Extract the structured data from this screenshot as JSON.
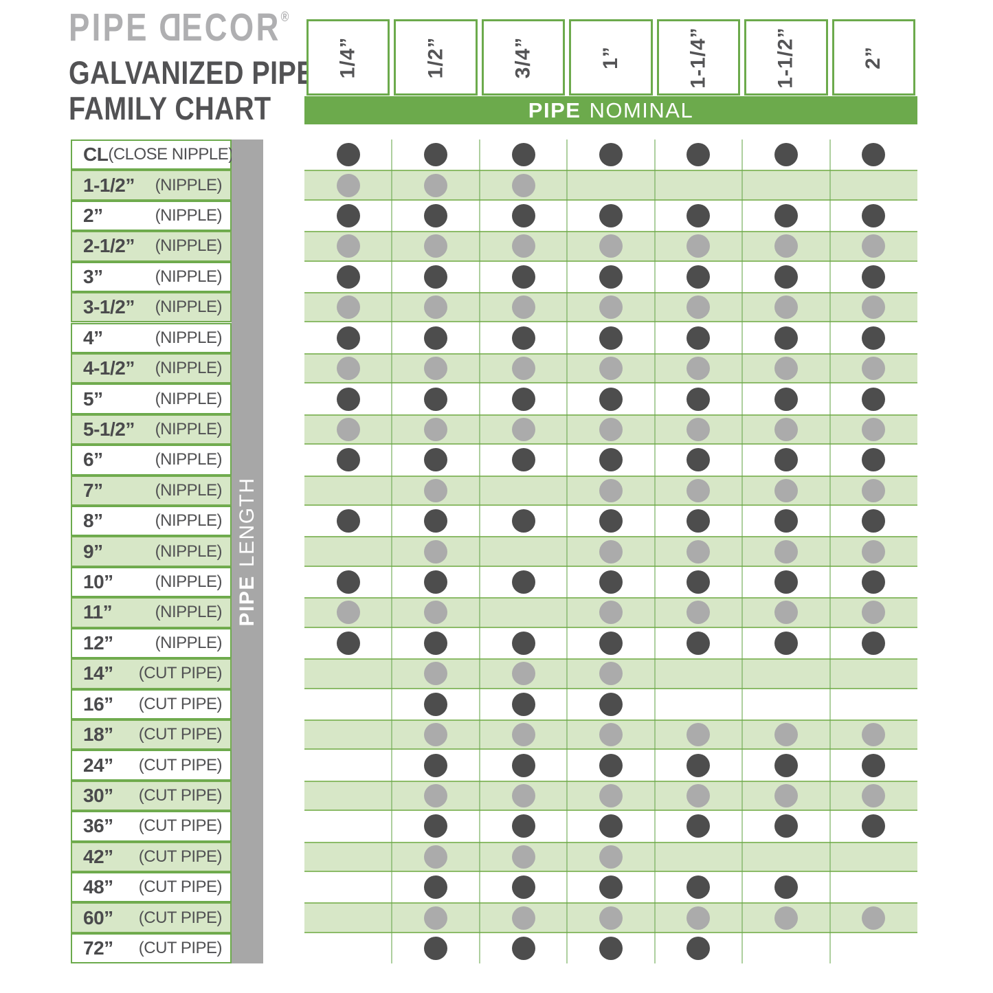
{
  "title": {
    "logo_part1": "PIPE",
    "logo_d": "D",
    "logo_part2": "ECOR",
    "logo_reg": "®",
    "line1": "GALVANIZED PIPE",
    "line2": "FAMILY CHART"
  },
  "chart_data": {
    "type": "table",
    "title": "Galvanized Pipe Family Chart",
    "col_axis": {
      "bold": "PIPE",
      "regular": "NOMINAL"
    },
    "row_axis": {
      "bold": "PIPE",
      "regular": "LENGTH"
    },
    "columns": [
      "1/4”",
      "1/2”",
      "3/4”",
      "1”",
      "1-1/4”",
      "1-1/2”",
      "2”"
    ],
    "rows": [
      {
        "size": "CL",
        "kind": "(CLOSE NIPPLE)",
        "available": [
          1,
          1,
          1,
          1,
          1,
          1,
          1
        ]
      },
      {
        "size": "1-1/2”",
        "kind": "(NIPPLE)",
        "available": [
          1,
          1,
          1,
          0,
          0,
          0,
          0
        ]
      },
      {
        "size": "2”",
        "kind": "(NIPPLE)",
        "available": [
          1,
          1,
          1,
          1,
          1,
          1,
          1
        ]
      },
      {
        "size": "2-1/2”",
        "kind": "(NIPPLE)",
        "available": [
          1,
          1,
          1,
          1,
          1,
          1,
          1
        ]
      },
      {
        "size": "3”",
        "kind": "(NIPPLE)",
        "available": [
          1,
          1,
          1,
          1,
          1,
          1,
          1
        ]
      },
      {
        "size": "3-1/2”",
        "kind": "(NIPPLE)",
        "available": [
          1,
          1,
          1,
          1,
          1,
          1,
          1
        ]
      },
      {
        "size": "4”",
        "kind": "(NIPPLE)",
        "available": [
          1,
          1,
          1,
          1,
          1,
          1,
          1
        ]
      },
      {
        "size": "4-1/2”",
        "kind": "(NIPPLE)",
        "available": [
          1,
          1,
          1,
          1,
          1,
          1,
          1
        ]
      },
      {
        "size": "5”",
        "kind": "(NIPPLE)",
        "available": [
          1,
          1,
          1,
          1,
          1,
          1,
          1
        ]
      },
      {
        "size": "5-1/2”",
        "kind": "(NIPPLE)",
        "available": [
          1,
          1,
          1,
          1,
          1,
          1,
          1
        ]
      },
      {
        "size": "6”",
        "kind": "(NIPPLE)",
        "available": [
          1,
          1,
          1,
          1,
          1,
          1,
          1
        ]
      },
      {
        "size": "7”",
        "kind": "(NIPPLE)",
        "available": [
          0,
          1,
          0,
          1,
          1,
          1,
          1
        ]
      },
      {
        "size": "8”",
        "kind": "(NIPPLE)",
        "available": [
          1,
          1,
          1,
          1,
          1,
          1,
          1
        ]
      },
      {
        "size": "9”",
        "kind": "(NIPPLE)",
        "available": [
          0,
          1,
          0,
          1,
          1,
          1,
          1
        ]
      },
      {
        "size": "10”",
        "kind": "(NIPPLE)",
        "available": [
          1,
          1,
          1,
          1,
          1,
          1,
          1
        ]
      },
      {
        "size": "11”",
        "kind": "(NIPPLE)",
        "available": [
          1,
          1,
          0,
          1,
          1,
          1,
          1
        ]
      },
      {
        "size": "12”",
        "kind": "(NIPPLE)",
        "available": [
          1,
          1,
          1,
          1,
          1,
          1,
          1
        ]
      },
      {
        "size": "14”",
        "kind": "(CUT PIPE)",
        "available": [
          0,
          1,
          1,
          1,
          0,
          0,
          0
        ]
      },
      {
        "size": "16”",
        "kind": "(CUT PIPE)",
        "available": [
          0,
          1,
          1,
          1,
          0,
          0,
          0
        ]
      },
      {
        "size": "18”",
        "kind": "(CUT PIPE)",
        "available": [
          0,
          1,
          1,
          1,
          1,
          1,
          1
        ]
      },
      {
        "size": "24”",
        "kind": "(CUT PIPE)",
        "available": [
          0,
          1,
          1,
          1,
          1,
          1,
          1
        ]
      },
      {
        "size": "30”",
        "kind": "(CUT PIPE)",
        "available": [
          0,
          1,
          1,
          1,
          1,
          1,
          1
        ]
      },
      {
        "size": "36”",
        "kind": "(CUT PIPE)",
        "available": [
          0,
          1,
          1,
          1,
          1,
          1,
          1
        ]
      },
      {
        "size": "42”",
        "kind": "(CUT PIPE)",
        "available": [
          0,
          1,
          1,
          1,
          0,
          0,
          0
        ]
      },
      {
        "size": "48”",
        "kind": "(CUT PIPE)",
        "available": [
          0,
          1,
          1,
          1,
          1,
          1,
          0
        ]
      },
      {
        "size": "60”",
        "kind": "(CUT PIPE)",
        "available": [
          0,
          1,
          1,
          1,
          1,
          1,
          1
        ]
      },
      {
        "size": "72”",
        "kind": "(CUT PIPE)",
        "available": [
          0,
          1,
          1,
          1,
          1,
          0,
          0
        ]
      }
    ]
  },
  "colors": {
    "accent_green": "#6CAA4C",
    "band_green": "#D7E7C7",
    "band_border_green": "#8CBB68",
    "dark_dot": "#4D4D4D",
    "light_dot": "#ABABAB",
    "bar_gray": "#A7A7A7",
    "logo_gray": "#AFAFB1",
    "text_dark": "#525254"
  }
}
